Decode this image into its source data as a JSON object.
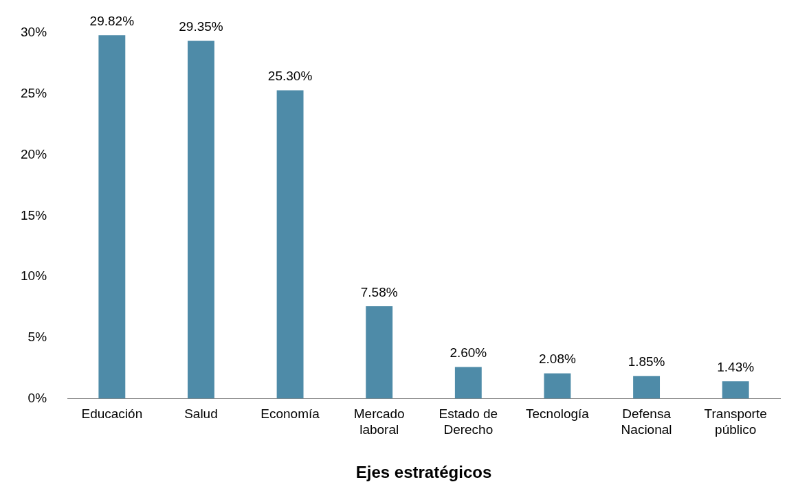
{
  "chart_data": {
    "type": "bar",
    "xlabel": "Ejes estratégicos",
    "categories": [
      "Educación",
      "Salud",
      "Economía",
      "Mercado laboral",
      "Estado de Derecho",
      "Tecnología",
      "Defensa Nacional",
      "Transporte público"
    ],
    "values": [
      29.82,
      29.35,
      25.3,
      7.58,
      2.6,
      2.08,
      1.85,
      1.43
    ],
    "value_labels": [
      "29.82%",
      "29.35%",
      "25.30%",
      "7.58%",
      "2.60%",
      "2.08%",
      "1.85%",
      "1.43%"
    ],
    "color": "#4e8ba8",
    "ylim": [
      0,
      30
    ],
    "yticks": [
      {
        "value": 0,
        "label": "0%"
      },
      {
        "value": 5,
        "label": "5%"
      },
      {
        "value": 10,
        "label": "10%"
      },
      {
        "value": 15,
        "label": "15%"
      },
      {
        "value": 20,
        "label": "20%"
      },
      {
        "value": 25,
        "label": "25%"
      },
      {
        "value": 30,
        "label": "30%"
      }
    ],
    "grid": false,
    "legend": false
  }
}
